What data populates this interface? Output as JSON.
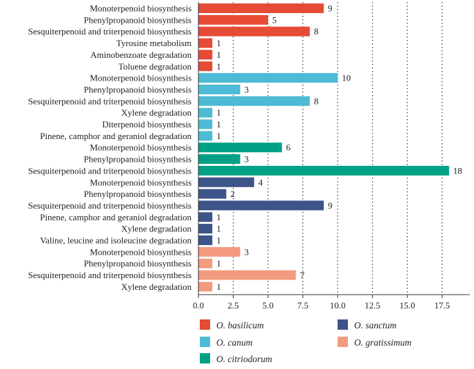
{
  "chart_data": {
    "type": "bar",
    "orientation": "horizontal",
    "xlim": [
      0,
      18.9
    ],
    "xticks": [
      "0.0",
      "2.5",
      "5.0",
      "7.5",
      "10.0",
      "12.5",
      "15.0",
      "17.5"
    ],
    "grid": "vertical-dotted",
    "legend_position": "bottom",
    "species": [
      {
        "name": "O. basilicum",
        "color": "#e64b35"
      },
      {
        "name": "O. canum",
        "color": "#4dbbd5"
      },
      {
        "name": "O. citriodorum",
        "color": "#00a087"
      },
      {
        "name": "O. sanctum",
        "color": "#3c5488"
      },
      {
        "name": "O. gratissimum",
        "color": "#f39b7f"
      }
    ],
    "legend_order": [
      0,
      1,
      2,
      3,
      4
    ],
    "bars": [
      {
        "label": "Monoterpenoid biosynthesis",
        "value": 9,
        "species": 0
      },
      {
        "label": "Phenylpropanoid biosynthesis",
        "value": 5,
        "species": 0
      },
      {
        "label": "Sesquiterpenoid and triterpenoid biosynthesis",
        "value": 8,
        "species": 0
      },
      {
        "label": "Tyrosine metabolism",
        "value": 1,
        "species": 0
      },
      {
        "label": "Aminobenzoate degradation",
        "value": 1,
        "species": 0
      },
      {
        "label": "Toluene degradation",
        "value": 1,
        "species": 0
      },
      {
        "label": "Monoterpenoid biosynthesis",
        "value": 10,
        "species": 1
      },
      {
        "label": "Phenylpropanoid biosynthesis",
        "value": 3,
        "species": 1
      },
      {
        "label": "Sesquiterpenoid and triterpenoid biosynthesis",
        "value": 8,
        "species": 1
      },
      {
        "label": "Xylene degradation",
        "value": 1,
        "species": 1
      },
      {
        "label": "Diterpenoid biosynthesis",
        "value": 1,
        "species": 1
      },
      {
        "label": "Pinene, camphor and geraniol degradation",
        "value": 1,
        "species": 1
      },
      {
        "label": "Monoterpenoid biosynthesis",
        "value": 6,
        "species": 2
      },
      {
        "label": "Phenylpropanoid biosynthesis",
        "value": 3,
        "species": 2
      },
      {
        "label": "Sesquiterpenoid and triterpenoid biosynthesis",
        "value": 18,
        "species": 2
      },
      {
        "label": "Monoterpenoid biosynthesis",
        "value": 4,
        "species": 3
      },
      {
        "label": "Phenylpropanoid biosynthesis",
        "value": 2,
        "species": 3
      },
      {
        "label": "Sesquiterpenoid and triterpenoid biosynthesis",
        "value": 9,
        "species": 3
      },
      {
        "label": "Pinene, camphor and geraniol degradation",
        "value": 1,
        "species": 3
      },
      {
        "label": "Xylene degradation",
        "value": 1,
        "species": 3
      },
      {
        "label": "Valine, leucine and isoleucine degradation",
        "value": 1,
        "species": 3
      },
      {
        "label": "Monoterpenoid biosynthesis",
        "value": 3,
        "species": 4
      },
      {
        "label": "Phenylpropanoid biosynthesis",
        "value": 1,
        "species": 4
      },
      {
        "label": "Sesquiterpenoid and triterpenoid biosynthesis",
        "value": 7,
        "species": 4
      },
      {
        "label": "Xylene degradation",
        "value": 1,
        "species": 4
      }
    ]
  }
}
